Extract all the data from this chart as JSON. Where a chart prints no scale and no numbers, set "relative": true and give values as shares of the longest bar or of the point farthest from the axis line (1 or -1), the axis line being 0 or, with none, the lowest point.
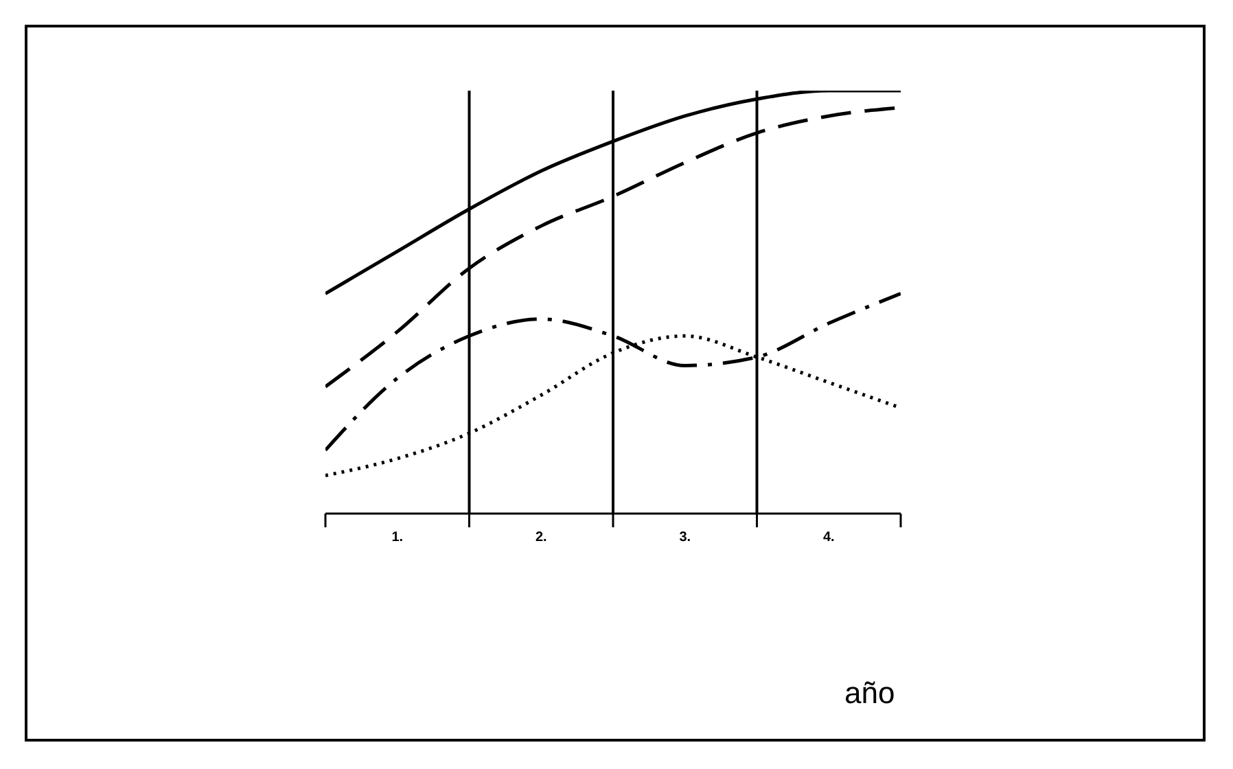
{
  "chart_data": {
    "type": "line",
    "relative": true,
    "xlabel": "año",
    "x": [
      0,
      0.5,
      1,
      1.5,
      2,
      2.5,
      3,
      3.5,
      4
    ],
    "xlim": [
      0,
      4
    ],
    "xticks": [
      {
        "value": 0,
        "label": null
      },
      {
        "value": 0.5,
        "label": "1."
      },
      {
        "value": 1,
        "label": null
      },
      {
        "value": 1.5,
        "label": "2."
      },
      {
        "value": 2,
        "label": null
      },
      {
        "value": 2.5,
        "label": "3."
      },
      {
        "value": 3,
        "label": null
      },
      {
        "value": 3.5,
        "label": "4."
      },
      {
        "value": 4,
        "label": null
      }
    ],
    "ref_lines": [
      {
        "axis": "x",
        "value": 1,
        "label": null
      },
      {
        "axis": "x",
        "value": 2,
        "label": null
      },
      {
        "axis": "x",
        "value": 3,
        "label": null
      }
    ],
    "series": [
      {
        "color": "#000000",
        "line_style": "solid",
        "values": [
          0.52,
          0.62,
          0.72,
          0.81,
          0.88,
          0.94,
          0.98,
          1.0,
          1.0
        ]
      },
      {
        "color": "#000000",
        "line_style": "dashed",
        "values": [
          0.3,
          0.43,
          0.58,
          0.68,
          0.75,
          0.83,
          0.9,
          0.94,
          0.96
        ]
      },
      {
        "color": "#000000",
        "line_style": "dashdot",
        "values": [
          0.15,
          0.32,
          0.42,
          0.46,
          0.42,
          0.35,
          0.37,
          0.45,
          0.52
        ]
      },
      {
        "color": "#000000",
        "line_style": "dotted",
        "values": [
          0.09,
          0.13,
          0.19,
          0.28,
          0.38,
          0.42,
          0.37,
          0.31,
          0.25
        ]
      }
    ],
    "grid": false,
    "legend": false,
    "marker": "none"
  }
}
